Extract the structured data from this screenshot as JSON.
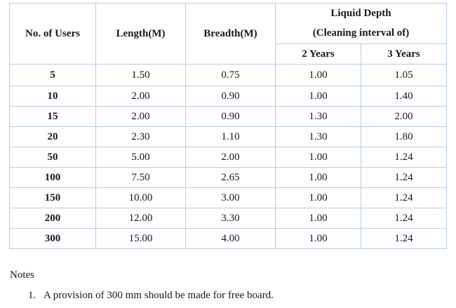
{
  "table": {
    "headers": {
      "users": "No. of Users",
      "length": "Length(M)",
      "breadth": "Breadth(M)",
      "liquid_depth": "Liquid Depth",
      "cleaning_interval": "(Cleaning interval of)",
      "two_years": "2 Years",
      "three_years": "3 Years"
    },
    "rows": [
      {
        "users": "5",
        "length": "1.50",
        "breadth": "0.75",
        "y2": "1.00",
        "y3": "1.05"
      },
      {
        "users": "10",
        "length": "2.00",
        "breadth": "0.90",
        "y2": "1.00",
        "y3": "1.40"
      },
      {
        "users": "15",
        "length": "2.00",
        "breadth": "0.90",
        "y2": "1.30",
        "y3": "2.00"
      },
      {
        "users": "20",
        "length": "2.30",
        "breadth": "1.10",
        "y2": "1.30",
        "y3": "1.80"
      },
      {
        "users": "50",
        "length": "5.00",
        "breadth": "2.00",
        "y2": "1.00",
        "y3": "1.24"
      },
      {
        "users": "100",
        "length": "7.50",
        "breadth": "2.65",
        "y2": "1.00",
        "y3": "1.24"
      },
      {
        "users": "150",
        "length": "10.00",
        "breadth": "3.00",
        "y2": "1.00",
        "y3": "1.24"
      },
      {
        "users": "200",
        "length": "12.00",
        "breadth": "3.30",
        "y2": "1.00",
        "y3": "1.24"
      },
      {
        "users": "300",
        "length": "15.00",
        "breadth": "4.00",
        "y2": "1.00",
        "y3": "1.24"
      }
    ]
  },
  "notes": {
    "heading": "Notes",
    "items": [
      {
        "num": "1.",
        "text": "A provision of 300 mm should be made for free board."
      }
    ]
  }
}
